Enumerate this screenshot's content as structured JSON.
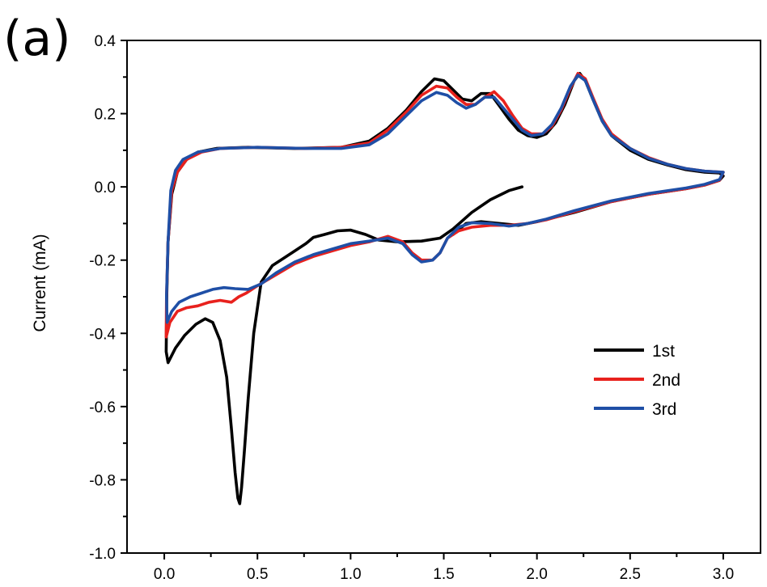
{
  "panel_label": "(a)",
  "chart_data": {
    "type": "line",
    "title": "",
    "xlabel": "",
    "ylabel": "Current (mA)",
    "xlim": [
      -0.2,
      3.2
    ],
    "ylim": [
      -1.0,
      0.4
    ],
    "x_ticks": [
      0.0,
      0.5,
      1.0,
      1.5,
      2.0,
      2.5,
      3.0
    ],
    "x_tick_labels": [
      "0.0",
      "0.5",
      "1.0",
      "1.5",
      "2.0",
      "2.5",
      "3.0"
    ],
    "y_ticks": [
      0.4,
      0.2,
      0.0,
      -0.2,
      -0.4,
      -0.6,
      -0.8,
      -1.0
    ],
    "y_tick_labels": [
      "0.4",
      "0.2",
      "0.0",
      "-0.2",
      "-0.4",
      "-0.6",
      "-0.8",
      "-1.0"
    ],
    "grid": false,
    "legend_position": "bottom-right",
    "series": [
      {
        "name": "1st",
        "color": "#000000",
        "points": [
          [
            1.92,
            0.0
          ],
          [
            1.85,
            -0.01
          ],
          [
            1.75,
            -0.035
          ],
          [
            1.65,
            -0.07
          ],
          [
            1.55,
            -0.115
          ],
          [
            1.48,
            -0.14
          ],
          [
            1.38,
            -0.148
          ],
          [
            1.25,
            -0.15
          ],
          [
            1.15,
            -0.145
          ],
          [
            1.08,
            -0.13
          ],
          [
            1.0,
            -0.118
          ],
          [
            0.93,
            -0.12
          ],
          [
            0.86,
            -0.13
          ],
          [
            0.8,
            -0.138
          ],
          [
            0.76,
            -0.155
          ],
          [
            0.7,
            -0.175
          ],
          [
            0.64,
            -0.195
          ],
          [
            0.58,
            -0.215
          ],
          [
            0.52,
            -0.26
          ],
          [
            0.48,
            -0.4
          ],
          [
            0.45,
            -0.58
          ],
          [
            0.43,
            -0.72
          ],
          [
            0.415,
            -0.82
          ],
          [
            0.405,
            -0.865
          ],
          [
            0.395,
            -0.85
          ],
          [
            0.38,
            -0.78
          ],
          [
            0.36,
            -0.66
          ],
          [
            0.335,
            -0.52
          ],
          [
            0.3,
            -0.42
          ],
          [
            0.26,
            -0.37
          ],
          [
            0.22,
            -0.36
          ],
          [
            0.17,
            -0.375
          ],
          [
            0.11,
            -0.405
          ],
          [
            0.06,
            -0.44
          ],
          [
            0.02,
            -0.48
          ],
          [
            0.01,
            -0.45
          ],
          [
            0.013,
            -0.3
          ],
          [
            0.02,
            -0.15
          ],
          [
            0.04,
            -0.02
          ],
          [
            0.07,
            0.04
          ],
          [
            0.12,
            0.075
          ],
          [
            0.18,
            0.095
          ],
          [
            0.28,
            0.105
          ],
          [
            0.45,
            0.108
          ],
          [
            0.7,
            0.105
          ],
          [
            0.95,
            0.108
          ],
          [
            1.1,
            0.125
          ],
          [
            1.2,
            0.16
          ],
          [
            1.3,
            0.21
          ],
          [
            1.38,
            0.26
          ],
          [
            1.45,
            0.295
          ],
          [
            1.5,
            0.29
          ],
          [
            1.55,
            0.265
          ],
          [
            1.6,
            0.24
          ],
          [
            1.65,
            0.235
          ],
          [
            1.7,
            0.255
          ],
          [
            1.75,
            0.255
          ],
          [
            1.8,
            0.22
          ],
          [
            1.85,
            0.185
          ],
          [
            1.9,
            0.155
          ],
          [
            1.95,
            0.14
          ],
          [
            2.0,
            0.135
          ],
          [
            2.05,
            0.145
          ],
          [
            2.1,
            0.175
          ],
          [
            2.15,
            0.225
          ],
          [
            2.2,
            0.29
          ],
          [
            2.23,
            0.31
          ],
          [
            2.26,
            0.29
          ],
          [
            2.3,
            0.24
          ],
          [
            2.35,
            0.18
          ],
          [
            2.4,
            0.14
          ],
          [
            2.5,
            0.1
          ],
          [
            2.6,
            0.075
          ],
          [
            2.7,
            0.06
          ],
          [
            2.8,
            0.047
          ],
          [
            2.9,
            0.04
          ],
          [
            2.98,
            0.038
          ],
          [
            3.0,
            0.03
          ],
          [
            2.98,
            0.018
          ],
          [
            2.9,
            0.005
          ],
          [
            2.8,
            -0.005
          ],
          [
            2.6,
            -0.02
          ],
          [
            2.4,
            -0.04
          ],
          [
            2.2,
            -0.07
          ],
          [
            2.0,
            -0.095
          ],
          [
            1.9,
            -0.105
          ],
          [
            1.8,
            -0.1
          ],
          [
            1.7,
            -0.095
          ],
          [
            1.62,
            -0.1
          ],
          [
            1.55,
            -0.13
          ]
        ]
      },
      {
        "name": "2nd",
        "color": "#e8211d",
        "points": [
          [
            3.0,
            0.04
          ],
          [
            2.98,
            0.018
          ],
          [
            2.9,
            0.005
          ],
          [
            2.8,
            -0.005
          ],
          [
            2.6,
            -0.02
          ],
          [
            2.4,
            -0.04
          ],
          [
            2.2,
            -0.068
          ],
          [
            2.05,
            -0.09
          ],
          [
            1.95,
            -0.1
          ],
          [
            1.85,
            -0.105
          ],
          [
            1.75,
            -0.105
          ],
          [
            1.65,
            -0.11
          ],
          [
            1.58,
            -0.12
          ],
          [
            1.52,
            -0.14
          ],
          [
            1.48,
            -0.18
          ],
          [
            1.44,
            -0.2
          ],
          [
            1.38,
            -0.2
          ],
          [
            1.33,
            -0.18
          ],
          [
            1.28,
            -0.15
          ],
          [
            1.2,
            -0.135
          ],
          [
            1.1,
            -0.15
          ],
          [
            1.0,
            -0.16
          ],
          [
            0.9,
            -0.175
          ],
          [
            0.8,
            -0.19
          ],
          [
            0.7,
            -0.21
          ],
          [
            0.6,
            -0.24
          ],
          [
            0.5,
            -0.27
          ],
          [
            0.44,
            -0.29
          ],
          [
            0.4,
            -0.3
          ],
          [
            0.36,
            -0.315
          ],
          [
            0.3,
            -0.31
          ],
          [
            0.24,
            -0.315
          ],
          [
            0.18,
            -0.325
          ],
          [
            0.12,
            -0.33
          ],
          [
            0.07,
            -0.34
          ],
          [
            0.03,
            -0.37
          ],
          [
            0.01,
            -0.41
          ],
          [
            0.012,
            -0.3
          ],
          [
            0.02,
            -0.15
          ],
          [
            0.04,
            -0.01
          ],
          [
            0.07,
            0.04
          ],
          [
            0.12,
            0.075
          ],
          [
            0.2,
            0.095
          ],
          [
            0.3,
            0.105
          ],
          [
            0.5,
            0.108
          ],
          [
            0.75,
            0.105
          ],
          [
            0.95,
            0.108
          ],
          [
            1.1,
            0.12
          ],
          [
            1.2,
            0.155
          ],
          [
            1.3,
            0.205
          ],
          [
            1.38,
            0.25
          ],
          [
            1.46,
            0.275
          ],
          [
            1.52,
            0.27
          ],
          [
            1.57,
            0.245
          ],
          [
            1.62,
            0.225
          ],
          [
            1.67,
            0.225
          ],
          [
            1.72,
            0.245
          ],
          [
            1.77,
            0.26
          ],
          [
            1.82,
            0.235
          ],
          [
            1.87,
            0.195
          ],
          [
            1.92,
            0.16
          ],
          [
            1.97,
            0.145
          ],
          [
            2.03,
            0.145
          ],
          [
            2.08,
            0.165
          ],
          [
            2.13,
            0.21
          ],
          [
            2.18,
            0.27
          ],
          [
            2.22,
            0.31
          ],
          [
            2.26,
            0.295
          ],
          [
            2.3,
            0.245
          ],
          [
            2.35,
            0.185
          ],
          [
            2.4,
            0.145
          ],
          [
            2.5,
            0.105
          ],
          [
            2.6,
            0.08
          ],
          [
            2.7,
            0.062
          ],
          [
            2.8,
            0.05
          ],
          [
            2.9,
            0.043
          ],
          [
            3.0,
            0.04
          ]
        ]
      },
      {
        "name": "3rd",
        "color": "#1f4fa6",
        "points": [
          [
            3.0,
            0.04
          ],
          [
            2.98,
            0.02
          ],
          [
            2.9,
            0.007
          ],
          [
            2.8,
            -0.003
          ],
          [
            2.6,
            -0.018
          ],
          [
            2.4,
            -0.038
          ],
          [
            2.2,
            -0.065
          ],
          [
            2.05,
            -0.088
          ],
          [
            1.95,
            -0.1
          ],
          [
            1.85,
            -0.107
          ],
          [
            1.75,
            -0.1
          ],
          [
            1.65,
            -0.098
          ],
          [
            1.58,
            -0.11
          ],
          [
            1.52,
            -0.14
          ],
          [
            1.48,
            -0.18
          ],
          [
            1.44,
            -0.2
          ],
          [
            1.38,
            -0.205
          ],
          [
            1.33,
            -0.185
          ],
          [
            1.28,
            -0.155
          ],
          [
            1.2,
            -0.14
          ],
          [
            1.1,
            -0.148
          ],
          [
            1.0,
            -0.155
          ],
          [
            0.9,
            -0.17
          ],
          [
            0.8,
            -0.185
          ],
          [
            0.7,
            -0.205
          ],
          [
            0.6,
            -0.235
          ],
          [
            0.52,
            -0.265
          ],
          [
            0.45,
            -0.28
          ],
          [
            0.38,
            -0.278
          ],
          [
            0.32,
            -0.275
          ],
          [
            0.26,
            -0.28
          ],
          [
            0.2,
            -0.29
          ],
          [
            0.14,
            -0.3
          ],
          [
            0.08,
            -0.315
          ],
          [
            0.04,
            -0.34
          ],
          [
            0.015,
            -0.37
          ],
          [
            0.012,
            -0.3
          ],
          [
            0.02,
            -0.15
          ],
          [
            0.035,
            -0.01
          ],
          [
            0.06,
            0.045
          ],
          [
            0.1,
            0.075
          ],
          [
            0.18,
            0.095
          ],
          [
            0.3,
            0.105
          ],
          [
            0.5,
            0.108
          ],
          [
            0.75,
            0.105
          ],
          [
            0.95,
            0.105
          ],
          [
            1.1,
            0.115
          ],
          [
            1.2,
            0.145
          ],
          [
            1.3,
            0.195
          ],
          [
            1.38,
            0.235
          ],
          [
            1.46,
            0.258
          ],
          [
            1.52,
            0.25
          ],
          [
            1.57,
            0.23
          ],
          [
            1.62,
            0.215
          ],
          [
            1.67,
            0.225
          ],
          [
            1.72,
            0.245
          ],
          [
            1.77,
            0.245
          ],
          [
            1.82,
            0.215
          ],
          [
            1.87,
            0.185
          ],
          [
            1.92,
            0.155
          ],
          [
            1.97,
            0.14
          ],
          [
            2.03,
            0.145
          ],
          [
            2.08,
            0.17
          ],
          [
            2.13,
            0.215
          ],
          [
            2.18,
            0.275
          ],
          [
            2.22,
            0.305
          ],
          [
            2.26,
            0.29
          ],
          [
            2.3,
            0.24
          ],
          [
            2.35,
            0.18
          ],
          [
            2.4,
            0.14
          ],
          [
            2.5,
            0.105
          ],
          [
            2.6,
            0.078
          ],
          [
            2.7,
            0.062
          ],
          [
            2.8,
            0.05
          ],
          [
            2.9,
            0.043
          ],
          [
            3.0,
            0.04
          ]
        ]
      }
    ]
  }
}
